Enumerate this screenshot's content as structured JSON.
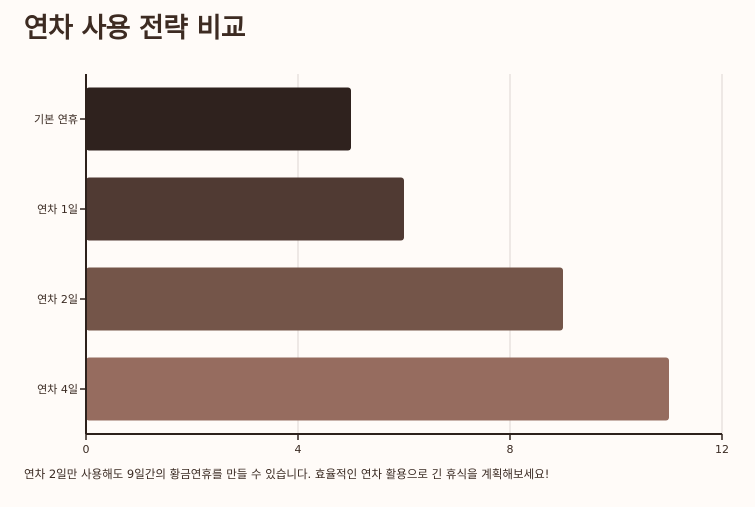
{
  "header": {
    "title": "연차 사용 전략 비교"
  },
  "chart_data": {
    "type": "bar",
    "orientation": "horizontal",
    "title": "연차 사용 전략 비교",
    "xlabel": "",
    "ylabel": "",
    "categories": [
      "기본 연휴",
      "연차 1일",
      "연차 2일",
      "연차 4일"
    ],
    "values": [
      5,
      6,
      9,
      11
    ],
    "xlim": [
      0,
      12
    ],
    "xticks": [
      "0",
      "4",
      "8",
      "12"
    ],
    "grid": "vertical",
    "legend": "none",
    "colors": [
      "#2f221e",
      "#503a33",
      "#745549",
      "#966c5f"
    ]
  },
  "footer": {
    "caption": "연차 2일만 사용해도 9일간의 황금연휴를 만들 수 있습니다. 효율적인 연차 활용으로 긴 휴식을 계획해보세요!"
  }
}
